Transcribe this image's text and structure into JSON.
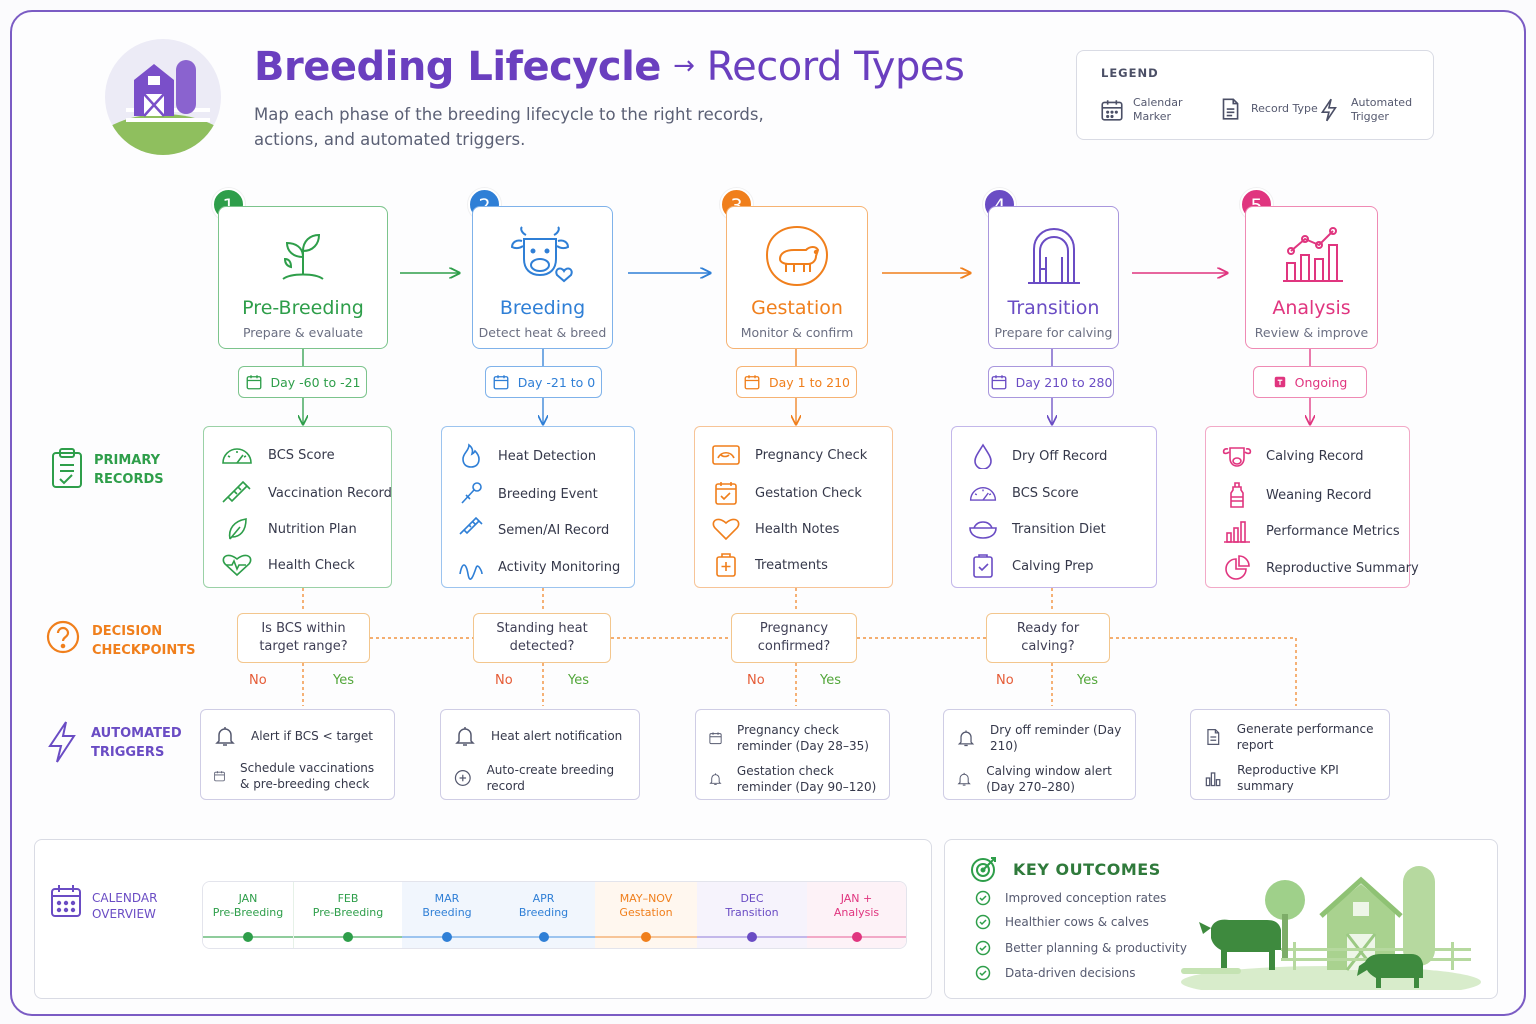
{
  "header": {
    "title_main": "Breeding Lifecycle",
    "title_arrow": "→",
    "title_rest": "Record Types",
    "subtitle": "Map each phase of the breeding lifecycle to the right records, actions, and automated triggers."
  },
  "legend": {
    "title": "LEGEND",
    "items": [
      {
        "label": "Calendar Marker",
        "icon": "calendar-icon"
      },
      {
        "label": "Record Type",
        "icon": "document-icon"
      },
      {
        "label": "Automated Trigger",
        "icon": "lightning-icon"
      }
    ]
  },
  "colors": {
    "pre_breeding": "#2e9e4a",
    "breeding": "#2f7fd6",
    "gestation": "#f07f1c",
    "transition": "#6a4cc4",
    "analysis": "#e0357f",
    "brand_purple": "#6a3fbf"
  },
  "stages": [
    {
      "number": "1",
      "name": "Pre-Breeding",
      "subtitle": "Prepare & evaluate",
      "calendar": "Day -60 to -21",
      "icon": "sprout-icon"
    },
    {
      "number": "2",
      "name": "Breeding",
      "subtitle": "Detect heat & breed",
      "calendar": "Day -21 to 0",
      "icon": "cow-heart-icon"
    },
    {
      "number": "3",
      "name": "Gestation",
      "subtitle": "Monitor & confirm",
      "calendar": "Day 1 to 210",
      "icon": "calf-in-womb-icon"
    },
    {
      "number": "4",
      "name": "Transition",
      "subtitle": "Prepare for calving",
      "calendar": "Day 210 to 280",
      "icon": "barn-door-icon"
    },
    {
      "number": "5",
      "name": "Analysis",
      "subtitle": "Review & improve",
      "calendar": "Ongoing",
      "icon": "bar-chart-icon"
    }
  ],
  "row_labels": {
    "primary_records": "PRIMARY RECORDS",
    "decision_checkpoints": "DECISION CHECKPOINTS",
    "automated_triggers": "AUTOMATED TRIGGERS",
    "calendar_overview": "CALENDAR OVERVIEW"
  },
  "records": [
    [
      "BCS Score",
      "Vaccination Record",
      "Nutrition Plan",
      "Health Check"
    ],
    [
      "Heat Detection",
      "Breeding Event",
      "Semen/AI Record",
      "Activity Monitoring"
    ],
    [
      "Pregnancy Check",
      "Gestation Check",
      "Health Notes",
      "Treatments"
    ],
    [
      "Dry Off Record",
      "BCS Score",
      "Transition Diet",
      "Calving Prep"
    ],
    [
      "Calving Record",
      "Weaning Record",
      "Performance Metrics",
      "Reproductive Summary"
    ]
  ],
  "decisions": [
    "Is BCS within target range?",
    "Standing heat detected?",
    "Pregnancy confirmed?",
    "Ready for calving?"
  ],
  "decision_no": "No",
  "decision_yes": "Yes",
  "triggers": [
    [
      "Alert if BCS < target",
      "Schedule vaccinations & pre-breeding check"
    ],
    [
      "Heat alert notification",
      "Auto-create breeding record"
    ],
    [
      "Pregnancy check reminder (Day 28–35)",
      "Gestation check reminder (Day 90–120)"
    ],
    [
      "Dry off reminder (Day 210)",
      "Calving window alert (Day 270–280)"
    ],
    [
      "Generate performance report",
      "Reproductive KPI summary"
    ]
  ],
  "calendar": [
    {
      "month": "JAN",
      "phase": "Pre-Breeding"
    },
    {
      "month": "FEB",
      "phase": "Pre-Breeding"
    },
    {
      "month": "MAR",
      "phase": "Breeding"
    },
    {
      "month": "APR",
      "phase": "Breeding"
    },
    {
      "month": "MAY–NOV",
      "phase": "Gestation"
    },
    {
      "month": "DEC",
      "phase": "Transition"
    },
    {
      "month": "JAN +",
      "phase": "Analysis"
    }
  ],
  "outcomes": {
    "title": "KEY OUTCOMES",
    "items": [
      "Improved conception rates",
      "Healthier cows & calves",
      "Better planning & productivity",
      "Data-driven decisions"
    ]
  }
}
